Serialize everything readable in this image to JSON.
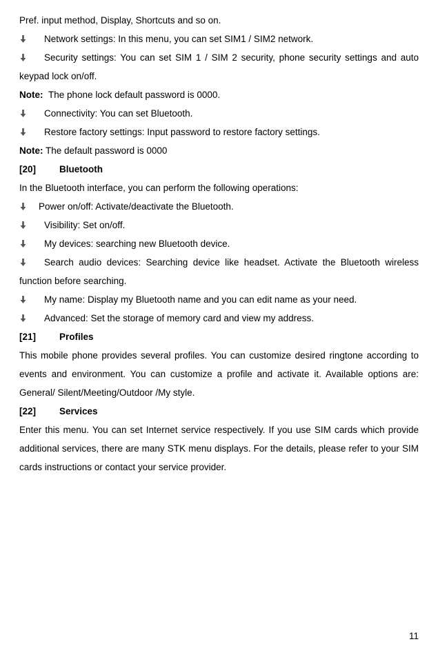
{
  "top_line": "Pref. input method, Display, Shortcuts and so on.",
  "settings_bullets": [
    "Network settings: In this menu, you can set SIM1 / SIM2 network.",
    "Security settings: You can set SIM 1 / SIM 2 security, phone security settings and auto keypad lock on/off.",
    "Connectivity: You can set Bluetooth.",
    "Restore factory settings: Input password to restore factory settings."
  ],
  "note1_label": "Note: ",
  "note1_text": "The phone lock default password is 0000.",
  "note2_label": "Note:",
  "note2_text": " The default password is 0000",
  "sec20_no": "[20]",
  "sec20_title": "Bluetooth",
  "bt_intro": "In the Bluetooth interface, you can perform the following operations:",
  "bt_bullets": [
    "Power on/off: Activate/deactivate the Bluetooth.",
    "Visibility: Set on/off.",
    "My devices: searching new Bluetooth device.",
    "Search audio devices: Searching device like headset. Activate the Bluetooth wireless function before searching.",
    "My name: Display my Bluetooth name and you can edit name as your need.",
    "Advanced: Set the storage of memory card and view my address."
  ],
  "sec21_no": "[21]",
  "sec21_title": "Profiles",
  "profiles_text": "This mobile phone provides several profiles. You can customize desired ringtone according to events and environment. You can customize a profile and activate it. Available options are: General/ Silent/Meeting/Outdoor /My style.",
  "sec22_no": "[22]",
  "sec22_title": "Services",
  "services_text": "Enter this menu. You can set Internet service respectively. If you use SIM cards which provide additional services, there are many STK menu displays. For the details, please refer to your SIM cards instructions or contact your service provider.",
  "page_number": "11",
  "bullet_icon_svg": "<svg width='11' height='11' viewBox='0 0 11 11'><rect x='4.2' y='0' width='2.6' height='7' fill='#555'/><polygon points='1.5,6 9.5,6 5.5,11' fill='#555'/></svg>",
  "colors": {
    "text": "#000000",
    "background": "#ffffff",
    "bullet": "#555555"
  }
}
